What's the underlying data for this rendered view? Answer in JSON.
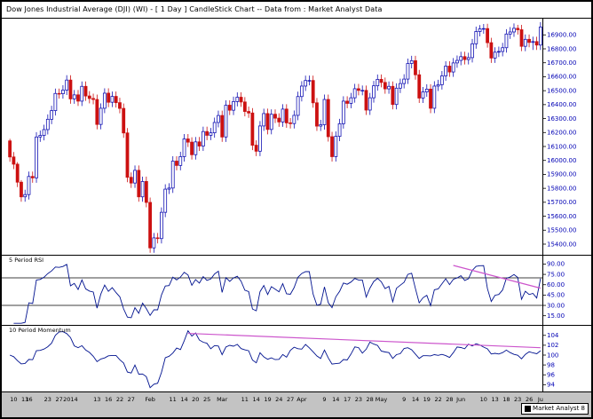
{
  "window": {
    "title": "Dow Jones Industrial Average (DJI) (WI) -  [ 1 Day ] CandleStick Chart -- Data from : Market Analyst Data"
  },
  "badge": {
    "label": "Market Analyst 8"
  },
  "colors": {
    "up": "#1414b4",
    "up_fill": "#ffffff",
    "down": "#cc1111",
    "indicator_line": "#00128f",
    "trendline": "#cc55cc",
    "axis_text": "#0000b4",
    "date_text": "#000000",
    "axis_strip": "#c3c3c3",
    "background": "#ffffff",
    "border": "#000000"
  },
  "chart_data": {
    "type": "candlestick",
    "symbol": "Dow Jones Industrial Average (DJI) (WI)",
    "interval": "1 Day",
    "source": "Market Analyst Data",
    "price_axis": {
      "min": 15330,
      "max": 17010,
      "tick_values": [
        16900,
        16800,
        16700,
        16600,
        16500,
        16400,
        16300,
        16200,
        16100,
        16000,
        15900,
        15800,
        15700,
        15600,
        15500,
        15400
      ],
      "tick_labels": [
        "16900.00",
        "16800.00",
        "16700.00",
        "16600.00",
        "16500.00",
        "16400.00",
        "16300.00",
        "16200.00",
        "16100.00",
        "16000.00",
        "15900.00",
        "15800.00",
        "15700.00",
        "15600.00",
        "15500.00",
        "15400.00"
      ]
    },
    "candles": [
      [
        16140,
        16155,
        15990,
        16025
      ],
      [
        16025,
        16060,
        15938,
        15973
      ],
      [
        15973,
        15988,
        15809,
        15844
      ],
      [
        15844,
        15859,
        15704,
        15739
      ],
      [
        15739,
        15790,
        15704,
        15755
      ],
      [
        15755,
        15920,
        15720,
        15885
      ],
      [
        15885,
        15920,
        15840,
        15875
      ],
      [
        15875,
        16203,
        15840,
        16168
      ],
      [
        16168,
        16214,
        16133,
        16179
      ],
      [
        16179,
        16256,
        16144,
        16221
      ],
      [
        16221,
        16330,
        16186,
        16295
      ],
      [
        16295,
        16392,
        16260,
        16357
      ],
      [
        16357,
        16515,
        16322,
        16480
      ],
      [
        16480,
        16515,
        16443,
        16478
      ],
      [
        16478,
        16539,
        16443,
        16504
      ],
      [
        16504,
        16611,
        16469,
        16576
      ],
      [
        16576,
        16611,
        16406,
        16441
      ],
      [
        16441,
        16505,
        16406,
        16470
      ],
      [
        16470,
        16505,
        16390,
        16425
      ],
      [
        16425,
        16566,
        16390,
        16531
      ],
      [
        16531,
        16566,
        16427,
        16462
      ],
      [
        16462,
        16497,
        16409,
        16444
      ],
      [
        16444,
        16479,
        16402,
        16437
      ],
      [
        16437,
        16472,
        16223,
        16258
      ],
      [
        16258,
        16409,
        16223,
        16374
      ],
      [
        16374,
        16517,
        16339,
        16482
      ],
      [
        16482,
        16517,
        16382,
        16417
      ],
      [
        16417,
        16494,
        16382,
        16459
      ],
      [
        16459,
        16494,
        16379,
        16414
      ],
      [
        16414,
        16449,
        16338,
        16373
      ],
      [
        16373,
        16408,
        16162,
        16197
      ],
      [
        16197,
        16232,
        15844,
        15879
      ],
      [
        15879,
        15914,
        15803,
        15838
      ],
      [
        15838,
        15964,
        15803,
        15929
      ],
      [
        15929,
        15964,
        15704,
        15739
      ],
      [
        15739,
        15884,
        15704,
        15849
      ],
      [
        15849,
        15884,
        15664,
        15699
      ],
      [
        15699,
        15734,
        15338,
        15373
      ],
      [
        15373,
        15480,
        15338,
        15445
      ],
      [
        15445,
        15480,
        15405,
        15440
      ],
      [
        15440,
        15663,
        15405,
        15628
      ],
      [
        15628,
        15829,
        15593,
        15794
      ],
      [
        15794,
        15837,
        15759,
        15802
      ],
      [
        15802,
        16030,
        15767,
        15995
      ],
      [
        15995,
        16030,
        15929,
        15964
      ],
      [
        15964,
        16062,
        15929,
        16027
      ],
      [
        16027,
        16189,
        15992,
        16154
      ],
      [
        16154,
        16189,
        16096,
        16131
      ],
      [
        16131,
        16166,
        16006,
        16041
      ],
      [
        16041,
        16168,
        16006,
        16133
      ],
      [
        16133,
        16168,
        16068,
        16103
      ],
      [
        16103,
        16242,
        16068,
        16207
      ],
      [
        16207,
        16242,
        16145,
        16180
      ],
      [
        16180,
        16233,
        16145,
        16198
      ],
      [
        16198,
        16307,
        16163,
        16272
      ],
      [
        16272,
        16357,
        16237,
        16322
      ],
      [
        16322,
        16357,
        16133,
        16168
      ],
      [
        16168,
        16431,
        16133,
        16396
      ],
      [
        16396,
        16431,
        16325,
        16360
      ],
      [
        16360,
        16457,
        16325,
        16422
      ],
      [
        16422,
        16488,
        16387,
        16453
      ],
      [
        16453,
        16488,
        16384,
        16419
      ],
      [
        16419,
        16454,
        16316,
        16351
      ],
      [
        16351,
        16386,
        16305,
        16340
      ],
      [
        16340,
        16375,
        16074,
        16109
      ],
      [
        16109,
        16144,
        16031,
        16066
      ],
      [
        16066,
        16282,
        16031,
        16247
      ],
      [
        16247,
        16371,
        16212,
        16336
      ],
      [
        16336,
        16371,
        16187,
        16222
      ],
      [
        16222,
        16366,
        16187,
        16331
      ],
      [
        16331,
        16366,
        16268,
        16303
      ],
      [
        16303,
        16338,
        16241,
        16276
      ],
      [
        16276,
        16403,
        16241,
        16368
      ],
      [
        16368,
        16403,
        16234,
        16269
      ],
      [
        16269,
        16304,
        16229,
        16264
      ],
      [
        16264,
        16358,
        16229,
        16323
      ],
      [
        16323,
        16493,
        16288,
        16458
      ],
      [
        16458,
        16568,
        16423,
        16533
      ],
      [
        16533,
        16608,
        16498,
        16573
      ],
      [
        16573,
        16608,
        16538,
        16573
      ],
      [
        16573,
        16608,
        16378,
        16413
      ],
      [
        16413,
        16448,
        16211,
        16246
      ],
      [
        16246,
        16291,
        16211,
        16256
      ],
      [
        16256,
        16472,
        16221,
        16437
      ],
      [
        16437,
        16472,
        16135,
        16170
      ],
      [
        16170,
        16205,
        15992,
        16027
      ],
      [
        16027,
        16208,
        15992,
        16173
      ],
      [
        16173,
        16298,
        16138,
        16263
      ],
      [
        16263,
        16460,
        16228,
        16425
      ],
      [
        16425,
        16460,
        16374,
        16409
      ],
      [
        16409,
        16484,
        16374,
        16449
      ],
      [
        16449,
        16549,
        16414,
        16514
      ],
      [
        16514,
        16549,
        16467,
        16502
      ],
      [
        16502,
        16537,
        16467,
        16502
      ],
      [
        16502,
        16537,
        16326,
        16361
      ],
      [
        16361,
        16484,
        16326,
        16449
      ],
      [
        16449,
        16570,
        16414,
        16535
      ],
      [
        16535,
        16616,
        16500,
        16581
      ],
      [
        16581,
        16616,
        16524,
        16559
      ],
      [
        16559,
        16594,
        16478,
        16513
      ],
      [
        16513,
        16566,
        16478,
        16531
      ],
      [
        16531,
        16566,
        16366,
        16401
      ],
      [
        16401,
        16553,
        16366,
        16518
      ],
      [
        16518,
        16586,
        16483,
        16551
      ],
      [
        16551,
        16618,
        16516,
        16583
      ],
      [
        16583,
        16730,
        16548,
        16695
      ],
      [
        16695,
        16750,
        16660,
        16715
      ],
      [
        16715,
        16750,
        16579,
        16614
      ],
      [
        16614,
        16649,
        16412,
        16447
      ],
      [
        16447,
        16526,
        16412,
        16491
      ],
      [
        16491,
        16546,
        16456,
        16511
      ],
      [
        16511,
        16546,
        16339,
        16374
      ],
      [
        16374,
        16568,
        16339,
        16533
      ],
      [
        16533,
        16578,
        16498,
        16543
      ],
      [
        16543,
        16641,
        16508,
        16606
      ],
      [
        16606,
        16711,
        16571,
        16676
      ],
      [
        16676,
        16711,
        16599,
        16634
      ],
      [
        16634,
        16734,
        16599,
        16699
      ],
      [
        16699,
        16752,
        16664,
        16717
      ],
      [
        16717,
        16779,
        16682,
        16744
      ],
      [
        16744,
        16779,
        16688,
        16723
      ],
      [
        16723,
        16772,
        16688,
        16737
      ],
      [
        16737,
        16871,
        16702,
        16836
      ],
      [
        16836,
        16959,
        16801,
        16924
      ],
      [
        16924,
        16970,
        16889,
        16943
      ],
      [
        16943,
        16978,
        16908,
        16945
      ],
      [
        16945,
        16980,
        16809,
        16844
      ],
      [
        16844,
        16879,
        16699,
        16734
      ],
      [
        16734,
        16811,
        16699,
        16776
      ],
      [
        16776,
        16816,
        16741,
        16781
      ],
      [
        16781,
        16843,
        16746,
        16808
      ],
      [
        16808,
        16941,
        16773,
        16906
      ],
      [
        16906,
        16956,
        16871,
        16921
      ],
      [
        16921,
        16982,
        16886,
        16947
      ],
      [
        16947,
        16972,
        16902,
        16937
      ],
      [
        16937,
        16972,
        16783,
        16818
      ],
      [
        16818,
        16903,
        16783,
        16868
      ],
      [
        16868,
        16903,
        16811,
        16846
      ],
      [
        16846,
        16887,
        16792,
        16852
      ],
      [
        16852,
        16887,
        16792,
        16827
      ],
      [
        16827,
        16991,
        16792,
        16956
      ]
    ],
    "x_ticks": [
      {
        "i": 1,
        "t": "10"
      },
      {
        "i": 4,
        "t": "13"
      },
      {
        "i": 5,
        "t": "16"
      },
      {
        "i": 10,
        "t": "23"
      },
      {
        "i": 13,
        "t": "27"
      },
      {
        "i": 16,
        "t": "2014"
      },
      {
        "i": 23,
        "t": "13"
      },
      {
        "i": 26,
        "t": "16"
      },
      {
        "i": 29,
        "t": "22"
      },
      {
        "i": 32,
        "t": "27"
      },
      {
        "i": 37,
        "t": "Feb"
      },
      {
        "i": 43,
        "t": "11"
      },
      {
        "i": 46,
        "t": "14"
      },
      {
        "i": 49,
        "t": "20"
      },
      {
        "i": 52,
        "t": "25"
      },
      {
        "i": 56,
        "t": "Mar"
      },
      {
        "i": 62,
        "t": "11"
      },
      {
        "i": 65,
        "t": "14"
      },
      {
        "i": 68,
        "t": "19"
      },
      {
        "i": 71,
        "t": "24"
      },
      {
        "i": 74,
        "t": "27"
      },
      {
        "i": 77,
        "t": "Apr"
      },
      {
        "i": 83,
        "t": "9"
      },
      {
        "i": 86,
        "t": "14"
      },
      {
        "i": 89,
        "t": "17"
      },
      {
        "i": 92,
        "t": "23"
      },
      {
        "i": 95,
        "t": "28"
      },
      {
        "i": 98,
        "t": "May"
      },
      {
        "i": 104,
        "t": "9"
      },
      {
        "i": 107,
        "t": "14"
      },
      {
        "i": 110,
        "t": "19"
      },
      {
        "i": 113,
        "t": "22"
      },
      {
        "i": 116,
        "t": "28"
      },
      {
        "i": 119,
        "t": "Jun"
      },
      {
        "i": 125,
        "t": "10"
      },
      {
        "i": 128,
        "t": "13"
      },
      {
        "i": 131,
        "t": "18"
      },
      {
        "i": 134,
        "t": "23"
      },
      {
        "i": 137,
        "t": "26"
      },
      {
        "i": 140,
        "t": "Ju"
      }
    ],
    "indicators": [
      {
        "label": "5 Period RSI",
        "kind": "rsi",
        "period": 5,
        "axis_min": 3,
        "axis_max": 97,
        "tick_values": [
          90,
          75,
          60,
          45,
          30,
          15
        ],
        "tick_labels": [
          "90.00",
          "75.00",
          "60.00",
          "45.00",
          "30.00",
          "15.00"
        ],
        "reference_lines": [
          70,
          30
        ],
        "trendline": {
          "from_index": 117,
          "from_value": 88,
          "to_index": 140,
          "to_value": 55
        }
      },
      {
        "label": "10 Period Momentum",
        "kind": "momentum",
        "period": 10,
        "axis_min": 92.8,
        "axis_max": 105.4,
        "tick_values": [
          104,
          102,
          100,
          98,
          96,
          94
        ],
        "tick_labels": [
          "104",
          "102",
          "100",
          "98",
          "96",
          "94"
        ],
        "reference_lines": [],
        "trendline": {
          "from_index": 47,
          "from_value": 104.4,
          "to_index": 140,
          "to_value": 101.5
        }
      }
    ]
  }
}
